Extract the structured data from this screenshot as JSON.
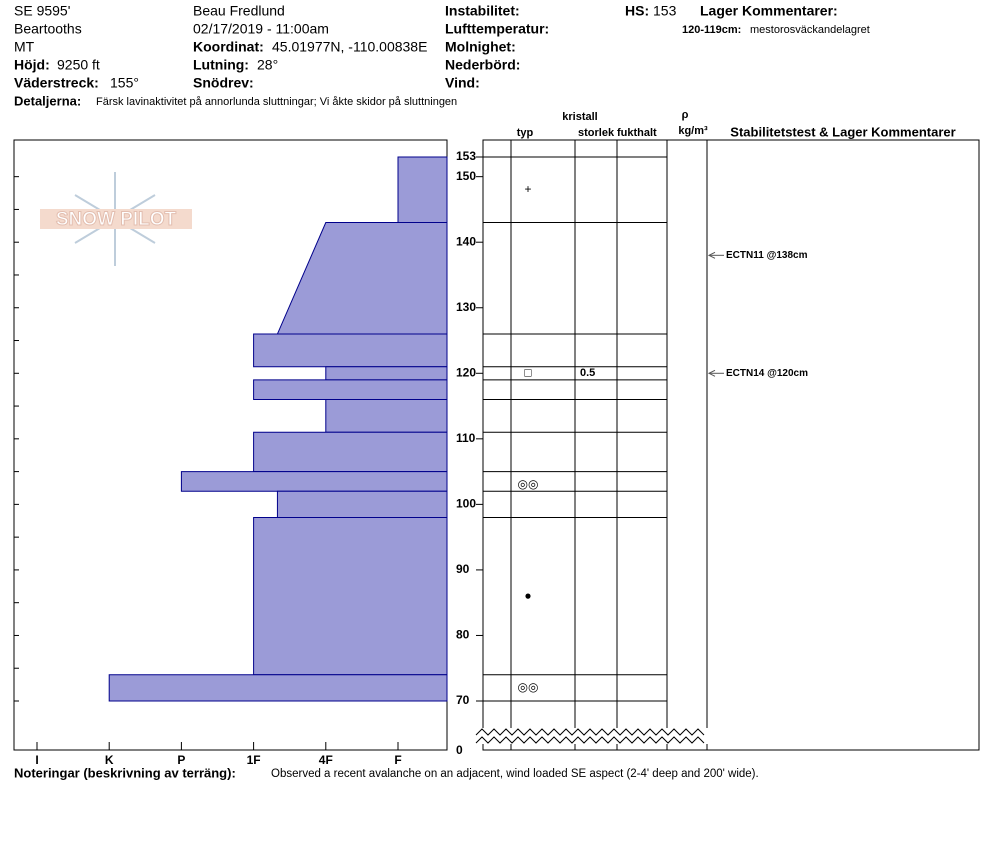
{
  "header": {
    "location": "SE 9595'",
    "range": "Beartooths",
    "state": "MT",
    "elevation_label": "Höjd:",
    "elevation": "9250 ft",
    "aspect_label": "Väderstreck:",
    "aspect": "155°",
    "observer": "Beau  Fredlund",
    "datetime": "02/17/2019 - 11:00am",
    "coord_label": "Koordinat:",
    "coord": "45.01977N, -110.00838E",
    "slope_label": "Lutning:",
    "slope": "28°",
    "wind_loading_label": "Snödrev:",
    "instability_label": "Instabilitet:",
    "air_temp_label": "Lufttemperatur:",
    "sky_label": "Molnighet:",
    "precip_label": "Nederbörd:",
    "wind_label": "Vind:",
    "hs_label": "HS:",
    "hs": 153,
    "layer_comments_label": "Lager Kommentarer:",
    "layer_comment_range": "120-119cm:",
    "layer_comment": "mestorosväckandelagret",
    "details_label": "Detaljerna:",
    "details": "Färsk lavinaktivitet på annorlunda sluttningar; Vi åkte skidor på sluttningen"
  },
  "logo": "SNOW PILOT",
  "columns": {
    "crystal": "kristall",
    "type": "typ",
    "size": "storlek",
    "moisture": "fukthalt",
    "rho": "ρ",
    "density_unit": "kg/m³",
    "tests": "Stabilitetstest & Lager Kommentarer"
  },
  "profile": {
    "ylim": [
      70,
      153
    ],
    "yticks": [
      153,
      150,
      140,
      130,
      120,
      110,
      100,
      90,
      80,
      70
    ],
    "ybreak": 0,
    "xticks": [
      {
        "value": 6,
        "label": "I"
      },
      {
        "value": 5,
        "label": "K"
      },
      {
        "value": 4,
        "label": "P"
      },
      {
        "value": 3,
        "label": "1F"
      },
      {
        "value": 2,
        "label": "4F"
      },
      {
        "value": 1,
        "label": "F"
      }
    ],
    "color": "#9b9bd7",
    "layers": [
      {
        "top": 153,
        "bottom": 143,
        "hardness": 1,
        "hardness_bottom": 1
      },
      {
        "top": 143,
        "bottom": 126,
        "hardness": 2,
        "hardness_bottom": 2.67
      },
      {
        "top": 126,
        "bottom": 121,
        "hardness": 3,
        "hardness_bottom": 3
      },
      {
        "top": 121,
        "bottom": 119,
        "hardness": 2,
        "hardness_bottom": 2
      },
      {
        "top": 119,
        "bottom": 116,
        "hardness": 3,
        "hardness_bottom": 3
      },
      {
        "top": 116,
        "bottom": 111,
        "hardness": 2,
        "hardness_bottom": 2
      },
      {
        "top": 111,
        "bottom": 105,
        "hardness": 3,
        "hardness_bottom": 3
      },
      {
        "top": 105,
        "bottom": 102,
        "hardness": 4,
        "hardness_bottom": 4
      },
      {
        "top": 102,
        "bottom": 98,
        "hardness": 2.67,
        "hardness_bottom": 2.67
      },
      {
        "top": 98,
        "bottom": 74,
        "hardness": 3,
        "hardness_bottom": 3
      },
      {
        "top": 74,
        "bottom": 70,
        "hardness": 5,
        "hardness_bottom": 5
      }
    ],
    "grains": [
      {
        "height": 148,
        "symbol": "+"
      },
      {
        "height": 120,
        "symbol": "□",
        "size": 0.5
      },
      {
        "height": 103,
        "symbol": "◎◎"
      },
      {
        "height": 86,
        "symbol": "●"
      },
      {
        "height": 72,
        "symbol": "◎◎"
      }
    ],
    "tests": [
      {
        "height": 138,
        "label": "ECTN11 @138cm"
      },
      {
        "height": 120,
        "label": "ECTN14 @120cm"
      }
    ]
  },
  "notes": {
    "label": "Noteringar (beskrivning av terräng):",
    "text": "Observed a recent avalanche on an adjacent, wind loaded SE aspect (2-4' deep and 200' wide)."
  }
}
